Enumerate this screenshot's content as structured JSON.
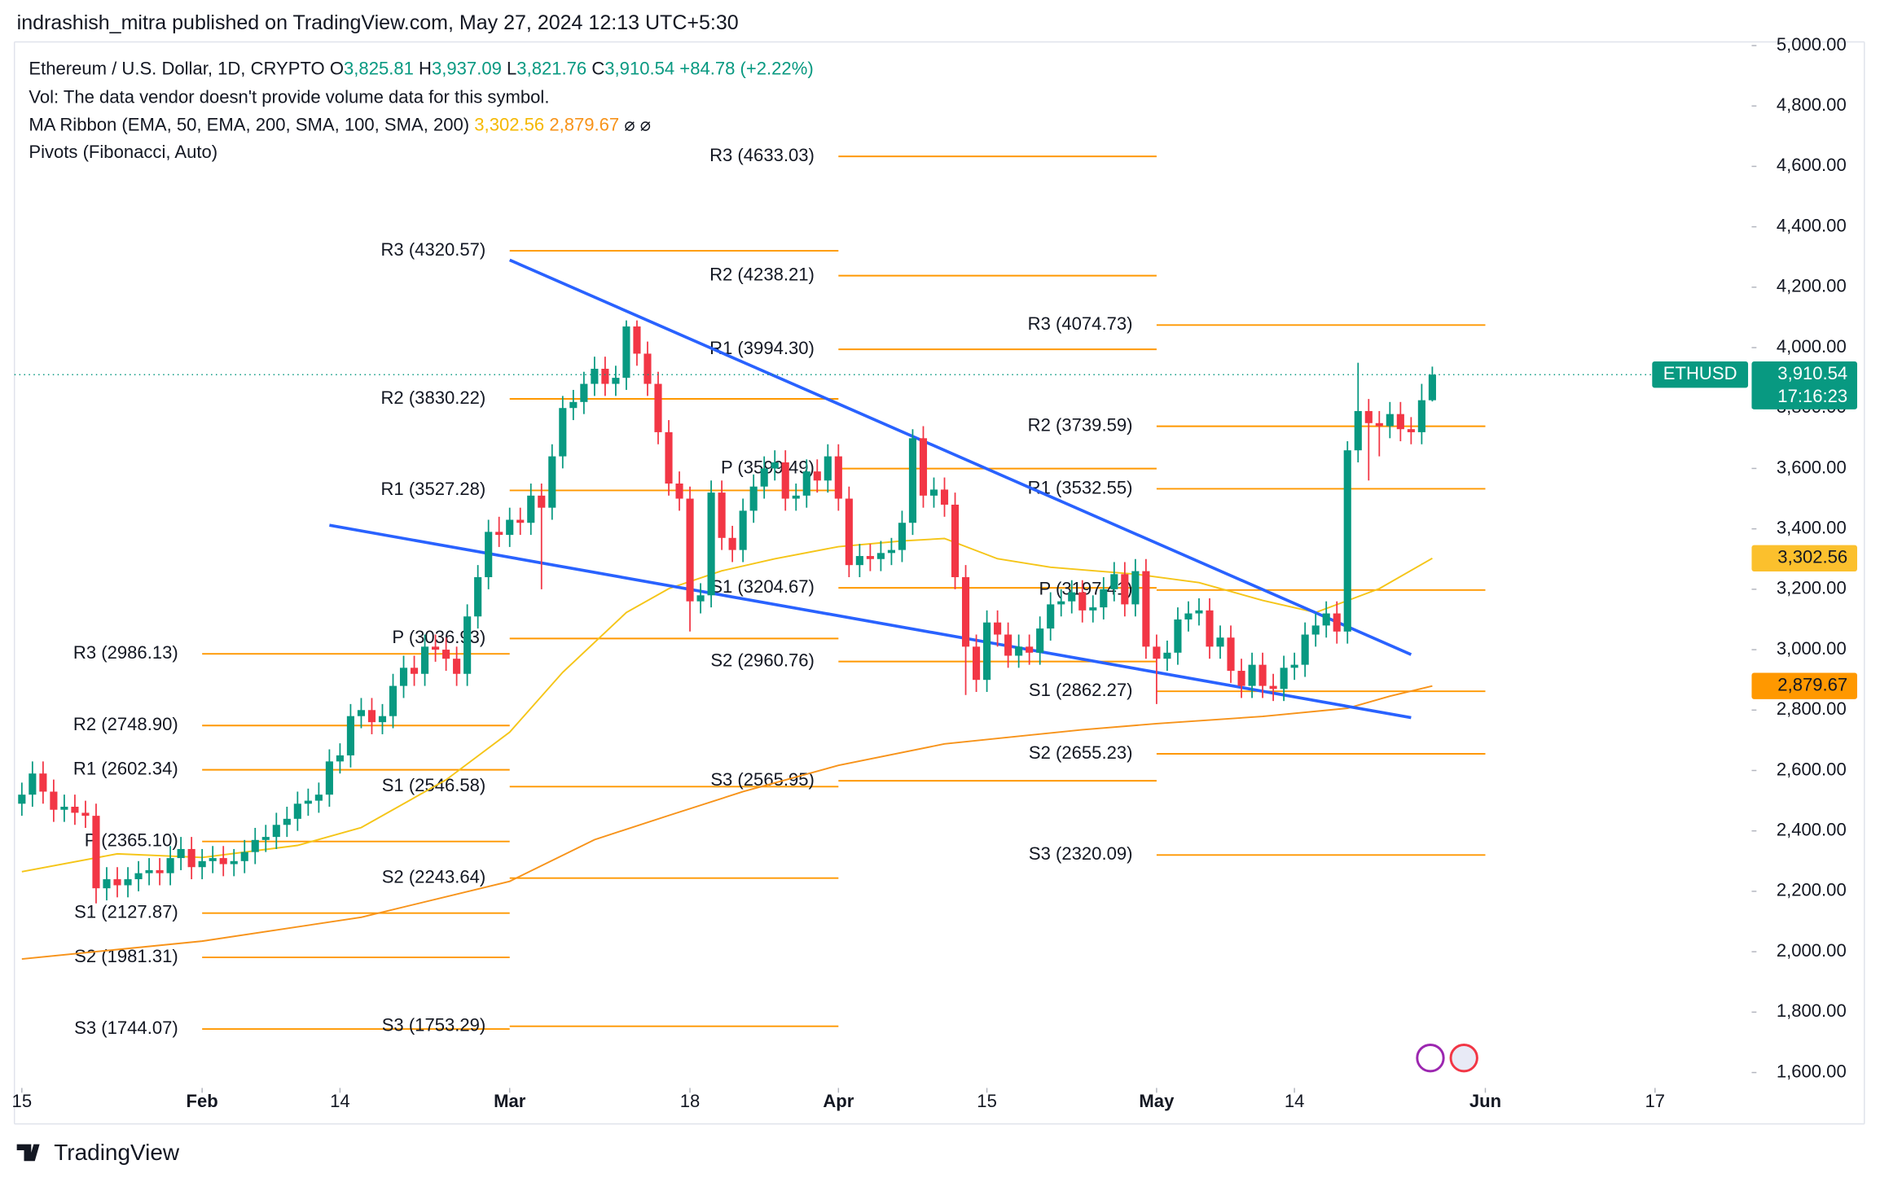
{
  "header": {
    "byline": "indrashish_mitra published on TradingView.com, May 27, 2024 12:13 UTC+5:30"
  },
  "legend": {
    "symbol": "Ethereum / U.S. Dollar, 1D, CRYPTO",
    "ohlc": [
      {
        "key": "O",
        "value": "3,825.81"
      },
      {
        "key": "H",
        "value": "3,937.09"
      },
      {
        "key": "L",
        "value": "3,821.76"
      },
      {
        "key": "C",
        "value": "3,910.54"
      }
    ],
    "change": "+84.78 (+2.22%)",
    "volume": "Vol: The data vendor doesn't provide volume data for this symbol.",
    "ma_ribbon": "MA Ribbon (EMA, 50, EMA, 200, SMA, 100, SMA, 200)",
    "ma_values": [
      "3,302.56",
      "2,879.67"
    ],
    "ma_na": "⌀  ⌀",
    "pivots": "Pivots (Fibonacci, Auto)"
  },
  "chart_data": {
    "type": "candlestick",
    "symbol_tag": "ETHUSD",
    "close_label": "3,910.54",
    "countdown": "17:16:23",
    "up_color": "#089981",
    "down_color": "#f23645",
    "x": [
      0,
      1,
      2,
      3,
      4,
      5,
      6,
      7,
      8,
      9,
      10,
      11,
      12,
      13,
      14,
      15,
      16,
      17,
      18,
      19,
      20,
      21,
      22,
      23,
      24,
      25,
      26,
      27,
      28,
      29,
      30,
      31,
      32,
      33,
      34,
      35,
      36,
      37,
      38,
      39,
      40,
      41,
      42,
      43,
      44,
      45,
      46,
      47,
      48,
      49,
      50,
      51,
      52,
      53,
      54,
      55,
      56,
      57,
      58,
      59,
      60,
      61,
      62,
      63,
      64,
      65,
      66,
      67,
      68,
      69,
      70,
      71,
      72,
      73,
      74,
      75,
      76,
      77,
      78,
      79,
      80,
      81,
      82,
      83,
      84,
      85,
      86,
      87,
      88,
      89,
      90,
      91,
      92,
      93,
      94,
      95,
      96,
      97,
      98,
      99,
      100,
      101,
      102,
      103,
      104,
      105,
      106,
      107,
      108,
      109,
      110,
      111,
      112,
      113,
      114,
      115,
      116,
      117,
      118,
      119,
      120,
      121,
      122,
      123,
      124,
      125,
      126,
      127,
      128,
      129,
      130,
      131,
      132,
      133
    ],
    "open": [
      2490,
      2520,
      2590,
      2530,
      2470,
      2480,
      2460,
      2450,
      2210,
      2240,
      2220,
      2240,
      2260,
      2270,
      2260,
      2310,
      2340,
      2280,
      2300,
      2310,
      2290,
      2300,
      2330,
      2370,
      2380,
      2420,
      2440,
      2490,
      2500,
      2520,
      2630,
      2650,
      2780,
      2800,
      2760,
      2780,
      2880,
      2940,
      2920,
      3010,
      3000,
      2970,
      2920,
      3110,
      3240,
      3390,
      3380,
      3430,
      3420,
      3510,
      3470,
      3640,
      3800,
      3820,
      3880,
      3930,
      3880,
      3900,
      4070,
      3980,
      3880,
      3720,
      3550,
      3500,
      3160,
      3180,
      3520,
      3370,
      3330,
      3460,
      3540,
      3600,
      3620,
      3500,
      3510,
      3590,
      3560,
      3640,
      3500,
      3280,
      3310,
      3300,
      3320,
      3330,
      3420,
      3700,
      3510,
      3530,
      3480,
      3240,
      3010,
      2900,
      3090,
      3050,
      2980,
      3010,
      2990,
      3070,
      3150,
      3160,
      3190,
      3130,
      3140,
      3200,
      3250,
      3150,
      3260,
      3010,
      2970,
      2990,
      3100,
      3120,
      3130,
      3010,
      3040,
      2930,
      2880,
      2950,
      2880,
      2870,
      2940,
      2950,
      3050,
      3080,
      3120,
      3060,
      3660,
      3790,
      3750,
      3740,
      3780,
      3730,
      3720,
      3825.81
    ],
    "high": [
      2560,
      2630,
      2630,
      2570,
      2520,
      2520,
      2500,
      2490,
      2280,
      2280,
      2280,
      2300,
      2310,
      2310,
      2350,
      2380,
      2380,
      2340,
      2350,
      2350,
      2340,
      2370,
      2410,
      2420,
      2460,
      2480,
      2530,
      2540,
      2560,
      2670,
      2690,
      2820,
      2840,
      2840,
      2820,
      2920,
      2980,
      2980,
      3050,
      3050,
      3040,
      3010,
      3150,
      3280,
      3430,
      3440,
      3470,
      3470,
      3550,
      3550,
      3680,
      3840,
      3860,
      3920,
      3970,
      3970,
      3940,
      4090,
      4090,
      4020,
      3920,
      3760,
      3590,
      3540,
      3220,
      3560,
      3560,
      3410,
      3500,
      3580,
      3640,
      3660,
      3660,
      3550,
      3630,
      3630,
      3680,
      3680,
      3540,
      3350,
      3350,
      3360,
      3370,
      3460,
      3730,
      3740,
      3570,
      3570,
      3520,
      3280,
      3050,
      3130,
      3130,
      3090,
      3050,
      3050,
      3110,
      3190,
      3200,
      3230,
      3230,
      3180,
      3240,
      3290,
      3290,
      3300,
      3300,
      3050,
      3030,
      3140,
      3160,
      3170,
      3170,
      3080,
      3080,
      2970,
      2990,
      2990,
      2920,
      2980,
      2990,
      3090,
      3120,
      3160,
      3160,
      3690,
      3950,
      3830,
      3790,
      3820,
      3820,
      3770,
      3880,
      3937.09
    ],
    "low": [
      2450,
      2480,
      2490,
      2430,
      2430,
      2420,
      2410,
      2160,
      2170,
      2180,
      2180,
      2200,
      2220,
      2220,
      2220,
      2270,
      2240,
      2240,
      2260,
      2250,
      2250,
      2260,
      2290,
      2330,
      2340,
      2380,
      2400,
      2450,
      2460,
      2480,
      2590,
      2610,
      2740,
      2720,
      2720,
      2740,
      2840,
      2880,
      2880,
      2960,
      2930,
      2880,
      2880,
      3070,
      3200,
      3340,
      3340,
      3380,
      3380,
      3200,
      3430,
      3600,
      3760,
      3780,
      3840,
      3840,
      3840,
      3860,
      3940,
      3840,
      3680,
      3510,
      3460,
      3060,
      3120,
      3140,
      3330,
      3290,
      3290,
      3420,
      3500,
      3560,
      3460,
      3460,
      3470,
      3520,
      3520,
      3460,
      3240,
      3240,
      3260,
      3260,
      3280,
      3290,
      3380,
      3470,
      3470,
      3440,
      3200,
      2850,
      2860,
      2860,
      3010,
      2940,
      2940,
      2950,
      2950,
      3030,
      3110,
      3120,
      3090,
      3090,
      3100,
      3160,
      3110,
      3110,
      2970,
      2820,
      2930,
      2950,
      3060,
      3080,
      2970,
      2970,
      2890,
      2840,
      2840,
      2840,
      2830,
      2830,
      2900,
      2910,
      3010,
      3040,
      3020,
      3020,
      3620,
      3560,
      3640,
      3700,
      3690,
      3680,
      3680,
      3821.76
    ],
    "close": [
      2520,
      2590,
      2530,
      2470,
      2480,
      2460,
      2450,
      2210,
      2240,
      2220,
      2240,
      2260,
      2270,
      2260,
      2310,
      2340,
      2280,
      2300,
      2310,
      2290,
      2300,
      2330,
      2370,
      2380,
      2420,
      2440,
      2490,
      2500,
      2520,
      2630,
      2650,
      2780,
      2800,
      2760,
      2780,
      2880,
      2940,
      2920,
      3010,
      3000,
      2970,
      2920,
      3110,
      3240,
      3390,
      3380,
      3430,
      3420,
      3510,
      3470,
      3640,
      3800,
      3820,
      3880,
      3930,
      3880,
      3900,
      4070,
      3980,
      3880,
      3720,
      3550,
      3500,
      3160,
      3180,
      3520,
      3370,
      3330,
      3460,
      3540,
      3600,
      3620,
      3500,
      3510,
      3590,
      3560,
      3640,
      3500,
      3280,
      3310,
      3300,
      3320,
      3330,
      3420,
      3700,
      3510,
      3530,
      3480,
      3240,
      3010,
      2900,
      3090,
      3050,
      2980,
      3010,
      2990,
      3070,
      3150,
      3160,
      3190,
      3130,
      3140,
      3200,
      3250,
      3150,
      3260,
      3010,
      2970,
      2990,
      3100,
      3120,
      3130,
      3010,
      3040,
      2930,
      2880,
      2950,
      2880,
      2870,
      2940,
      2950,
      3050,
      3080,
      3120,
      3060,
      3660,
      3790,
      3750,
      3740,
      3780,
      3730,
      3720,
      3825.81,
      3910.54
    ],
    "xlim": [
      -0.7,
      163
    ],
    "xticks": [
      {
        "value": 0,
        "label": "15"
      },
      {
        "value": 17,
        "label": "Feb"
      },
      {
        "value": 30,
        "label": "14"
      },
      {
        "value": 46,
        "label": "Mar"
      },
      {
        "value": 63,
        "label": "18"
      },
      {
        "value": 77,
        "label": "Apr"
      },
      {
        "value": 91,
        "label": "15"
      },
      {
        "value": 107,
        "label": "May"
      },
      {
        "value": 120,
        "label": "14"
      },
      {
        "value": 138,
        "label": "Jun"
      },
      {
        "value": 154,
        "label": "17"
      }
    ],
    "ylim": [
      1549,
      5012
    ],
    "yticks": [
      {
        "value": 1600,
        "label": "1,600.00"
      },
      {
        "value": 1800,
        "label": "1,800.00"
      },
      {
        "value": 2000,
        "label": "2,000.00"
      },
      {
        "value": 2200,
        "label": "2,200.00"
      },
      {
        "value": 2400,
        "label": "2,400.00"
      },
      {
        "value": 2600,
        "label": "2,600.00"
      },
      {
        "value": 2800,
        "label": "2,800.00"
      },
      {
        "value": 3000,
        "label": "3,000.00"
      },
      {
        "value": 3200,
        "label": "3,200.00"
      },
      {
        "value": 3400,
        "label": "3,400.00"
      },
      {
        "value": 3600,
        "label": "3,600.00"
      },
      {
        "value": 3800,
        "label": "3,800.00"
      },
      {
        "value": 4000,
        "label": "4,000.00"
      },
      {
        "value": 4200,
        "label": "4,200.00"
      },
      {
        "value": 4400,
        "label": "4,400.00"
      },
      {
        "value": 4600,
        "label": "4,600.00"
      },
      {
        "value": 4800,
        "label": "4,800.00"
      },
      {
        "value": 5000,
        "label": "5,000.00"
      }
    ],
    "ma_lines": [
      {
        "color": "#f5c518",
        "tag_color": "#fbc02d",
        "x": [
          0,
          9,
          17,
          26,
          32,
          40,
          46,
          51,
          57,
          61,
          66,
          71,
          77,
          83,
          87,
          92,
          97,
          105,
          111,
          117,
          122,
          128,
          133
        ],
        "values": [
          2265,
          2324,
          2312,
          2352,
          2411,
          2569,
          2727,
          2925,
          3123,
          3202,
          3261,
          3301,
          3341,
          3360,
          3368,
          3301,
          3273,
          3250,
          3222,
          3163,
          3123,
          3202,
          3302.56
        ],
        "value_label": "3,302.56"
      },
      {
        "color": "#f7931a",
        "tag_color": "#ff9800",
        "x": [
          0,
          17,
          32,
          46,
          54,
          61,
          68,
          77,
          87,
          100,
          107,
          117,
          125,
          129,
          133
        ],
        "values": [
          1976,
          2035,
          2114,
          2233,
          2371,
          2451,
          2530,
          2617,
          2688,
          2735,
          2755,
          2779,
          2806,
          2846,
          2879.67
        ],
        "value_label": "2,879.67"
      }
    ],
    "pivots": {
      "color": "#ff9800",
      "periods": [
        {
          "start": 17,
          "end": 46,
          "levels": [
            2986.13,
            2748.9,
            2602.34,
            2365.1,
            2127.87,
            1981.31,
            1744.07
          ],
          "value_labels": [
            "R3 (2986.13)",
            "R2 (2748.90)",
            "R1 (2602.34)",
            "P (2365.10)",
            "S1 (2127.87)",
            "S2 (1981.31)",
            "S3 (1744.07)"
          ]
        },
        {
          "start": 46,
          "end": 77,
          "levels": [
            4320.57,
            3830.22,
            3527.28,
            3036.93,
            2546.58,
            2243.64,
            1753.29
          ],
          "value_labels": [
            "R3 (4320.57)",
            "R2 (3830.22)",
            "R1 (3527.28)",
            "P (3036.93)",
            "S1 (2546.58)",
            "S2 (2243.64)",
            "S3 (1753.29)"
          ]
        },
        {
          "start": 77,
          "end": 107,
          "levels": [
            4633.03,
            4238.21,
            3994.3,
            3599.49,
            3204.67,
            2960.76,
            2565.95
          ],
          "value_labels": [
            "R3 (4633.03)",
            "R2 (4238.21)",
            "R1 (3994.30)",
            "P (3599.49)",
            "S1 (3204.67)",
            "S2 (2960.76)",
            "S3 (2565.95)"
          ]
        },
        {
          "start": 107,
          "end": 138,
          "levels": [
            4074.73,
            3739.59,
            3532.55,
            3197.41,
            2862.27,
            2655.23,
            2320.09
          ],
          "value_labels": [
            "R3 (4074.73)",
            "R2 (3739.59)",
            "R1 (3532.55)",
            "P (3197.41)",
            "S1 (2862.27)",
            "S2 (2655.23)",
            "S3 (2320.09)"
          ]
        }
      ]
    },
    "trendlines": {
      "color": "#2962ff",
      "lines": [
        {
          "x": [
            46,
            131
          ],
          "values": [
            4290,
            2984
          ]
        },
        {
          "x": [
            29,
            131
          ],
          "values": [
            3412,
            2775
          ]
        }
      ]
    }
  },
  "footer": {
    "brand": "TradingView"
  }
}
